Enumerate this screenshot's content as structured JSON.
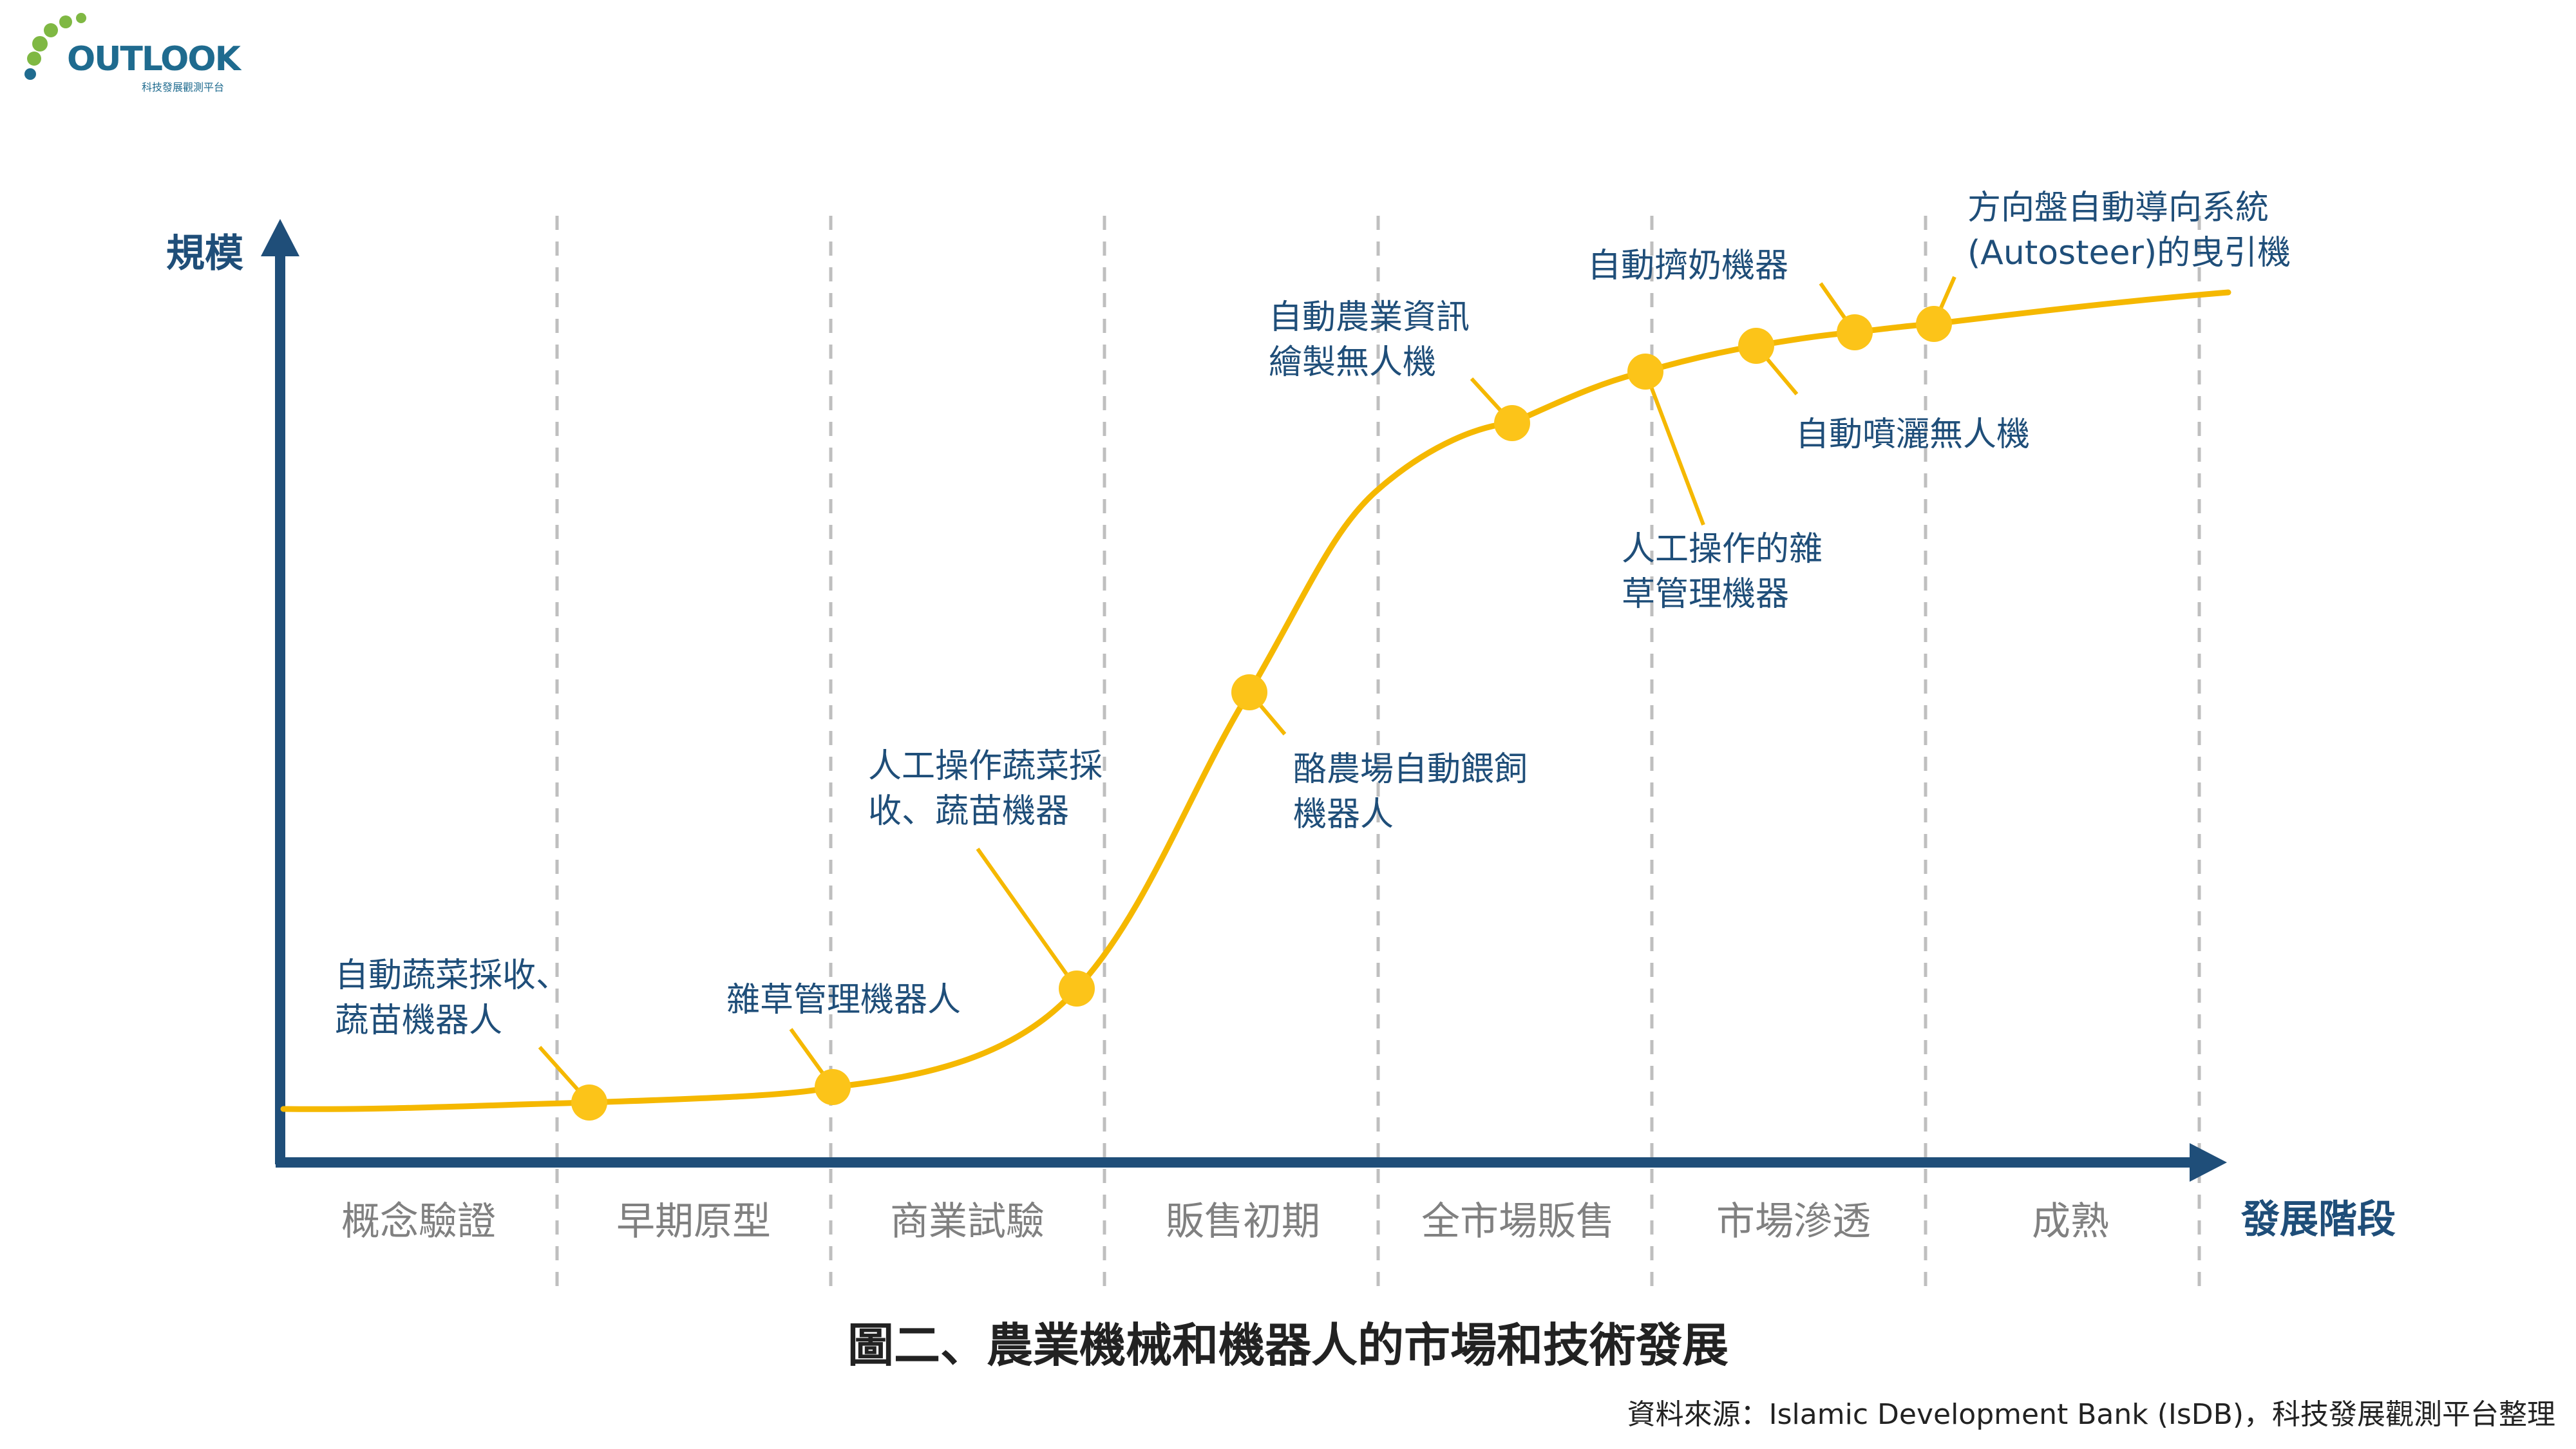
{
  "logo": {
    "word": "OUTLOOK",
    "subtitle": "科技發展觀測平台"
  },
  "axes": {
    "y_label": "規模",
    "x_label": "發展階段"
  },
  "stages": [
    {
      "label": "概念驗證"
    },
    {
      "label": "早期原型"
    },
    {
      "label": "商業試驗"
    },
    {
      "label": "販售初期"
    },
    {
      "label": "全市場販售"
    },
    {
      "label": "市場滲透"
    },
    {
      "label": "成熟"
    }
  ],
  "milestones": [
    {
      "label": "自動蔬菜採收、\n蔬苗機器人"
    },
    {
      "label": "雜草管理機器人"
    },
    {
      "label": "人工操作蔬菜採\n收、蔬苗機器"
    },
    {
      "label": "酪農場自動餵飼\n機器人"
    },
    {
      "label": "自動農業資訊\n繪製無人機"
    },
    {
      "label": "人工操作的雜\n草管理機器"
    },
    {
      "label": "自動擠奶機器"
    },
    {
      "label": "自動噴灑無人機"
    },
    {
      "label": "方向盤自動導向系統\n(Autosteer)的曳引機"
    }
  ],
  "figure_title": "圖二、農業機械和機器人的市場和技術發展",
  "source": "資料來源：Islamic Development Bank (IsDB)，科技發展觀測平台整理",
  "colors": {
    "axis": "#1f4e79",
    "curve": "#f5b800",
    "dot": "#fcc419",
    "label": "#1f4e79",
    "stage_text": "#808080",
    "divider": "#bfbfbf",
    "logo_green": "#7fb843",
    "logo_blue": "#1f6b8f"
  }
}
